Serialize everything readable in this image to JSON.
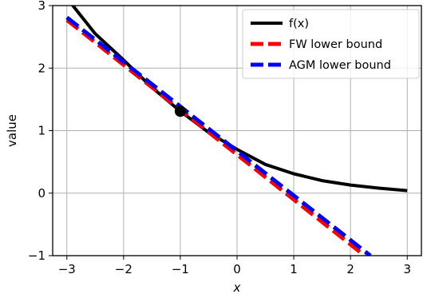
{
  "chart_data": {
    "type": "line",
    "xlabel": "x",
    "ylabel": "value",
    "xlim": [
      -3.25,
      3.25
    ],
    "ylim": [
      -1,
      3
    ],
    "xticks": [
      -3,
      -2,
      -1,
      0,
      1,
      2,
      3
    ],
    "yticks": [
      -1,
      0,
      1,
      2,
      3
    ],
    "xtick_labels": [
      "−3",
      "−2",
      "−1",
      "0",
      "1",
      "2",
      "3"
    ],
    "ytick_labels": [
      "−1",
      "0",
      "1",
      "2",
      "3"
    ],
    "grid": true,
    "legend_position": "top-right",
    "series": [
      {
        "name": "f(x)",
        "color": "#000000",
        "style": "solid",
        "x": [
          -3.0,
          -2.5,
          -2.0,
          -1.5,
          -1.0,
          -0.5,
          0.0,
          0.5,
          1.0,
          1.5,
          2.0,
          2.5,
          3.0
        ],
        "y": [
          3.12,
          2.55,
          2.13,
          1.69,
          1.31,
          0.97,
          0.7,
          0.46,
          0.31,
          0.2,
          0.13,
          0.08,
          0.04
        ]
      },
      {
        "name": "FW lower bound",
        "color": "#ff0000",
        "style": "dashed",
        "x": [
          -3.0,
          2.25
        ],
        "y": [
          2.77,
          -1.0
        ]
      },
      {
        "name": "AGM lower bound",
        "color": "#0000ff",
        "style": "dashed",
        "x": [
          -3.0,
          2.35
        ],
        "y": [
          2.81,
          -1.0
        ]
      }
    ],
    "point": {
      "x": -1.0,
      "y": 1.31,
      "color": "#000000"
    }
  }
}
